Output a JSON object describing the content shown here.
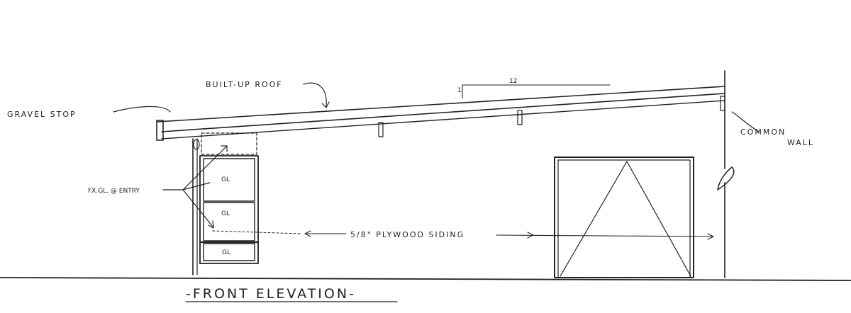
{
  "drawing": {
    "title": "-FRONT ELEVATION-",
    "labels": {
      "roof": "BUILT-UP ROOF",
      "gravel_stop": "GRAVEL STOP",
      "common_wall_1": "COMMON",
      "common_wall_2": "WALL",
      "fixed_glass": "FX.GL. @ ENTRY",
      "siding": "5/8\" PLYWOOD SIDING",
      "slope_run": "12",
      "slope_rise": "1"
    },
    "glass_panels": [
      "GL",
      "GL",
      "GL"
    ]
  }
}
